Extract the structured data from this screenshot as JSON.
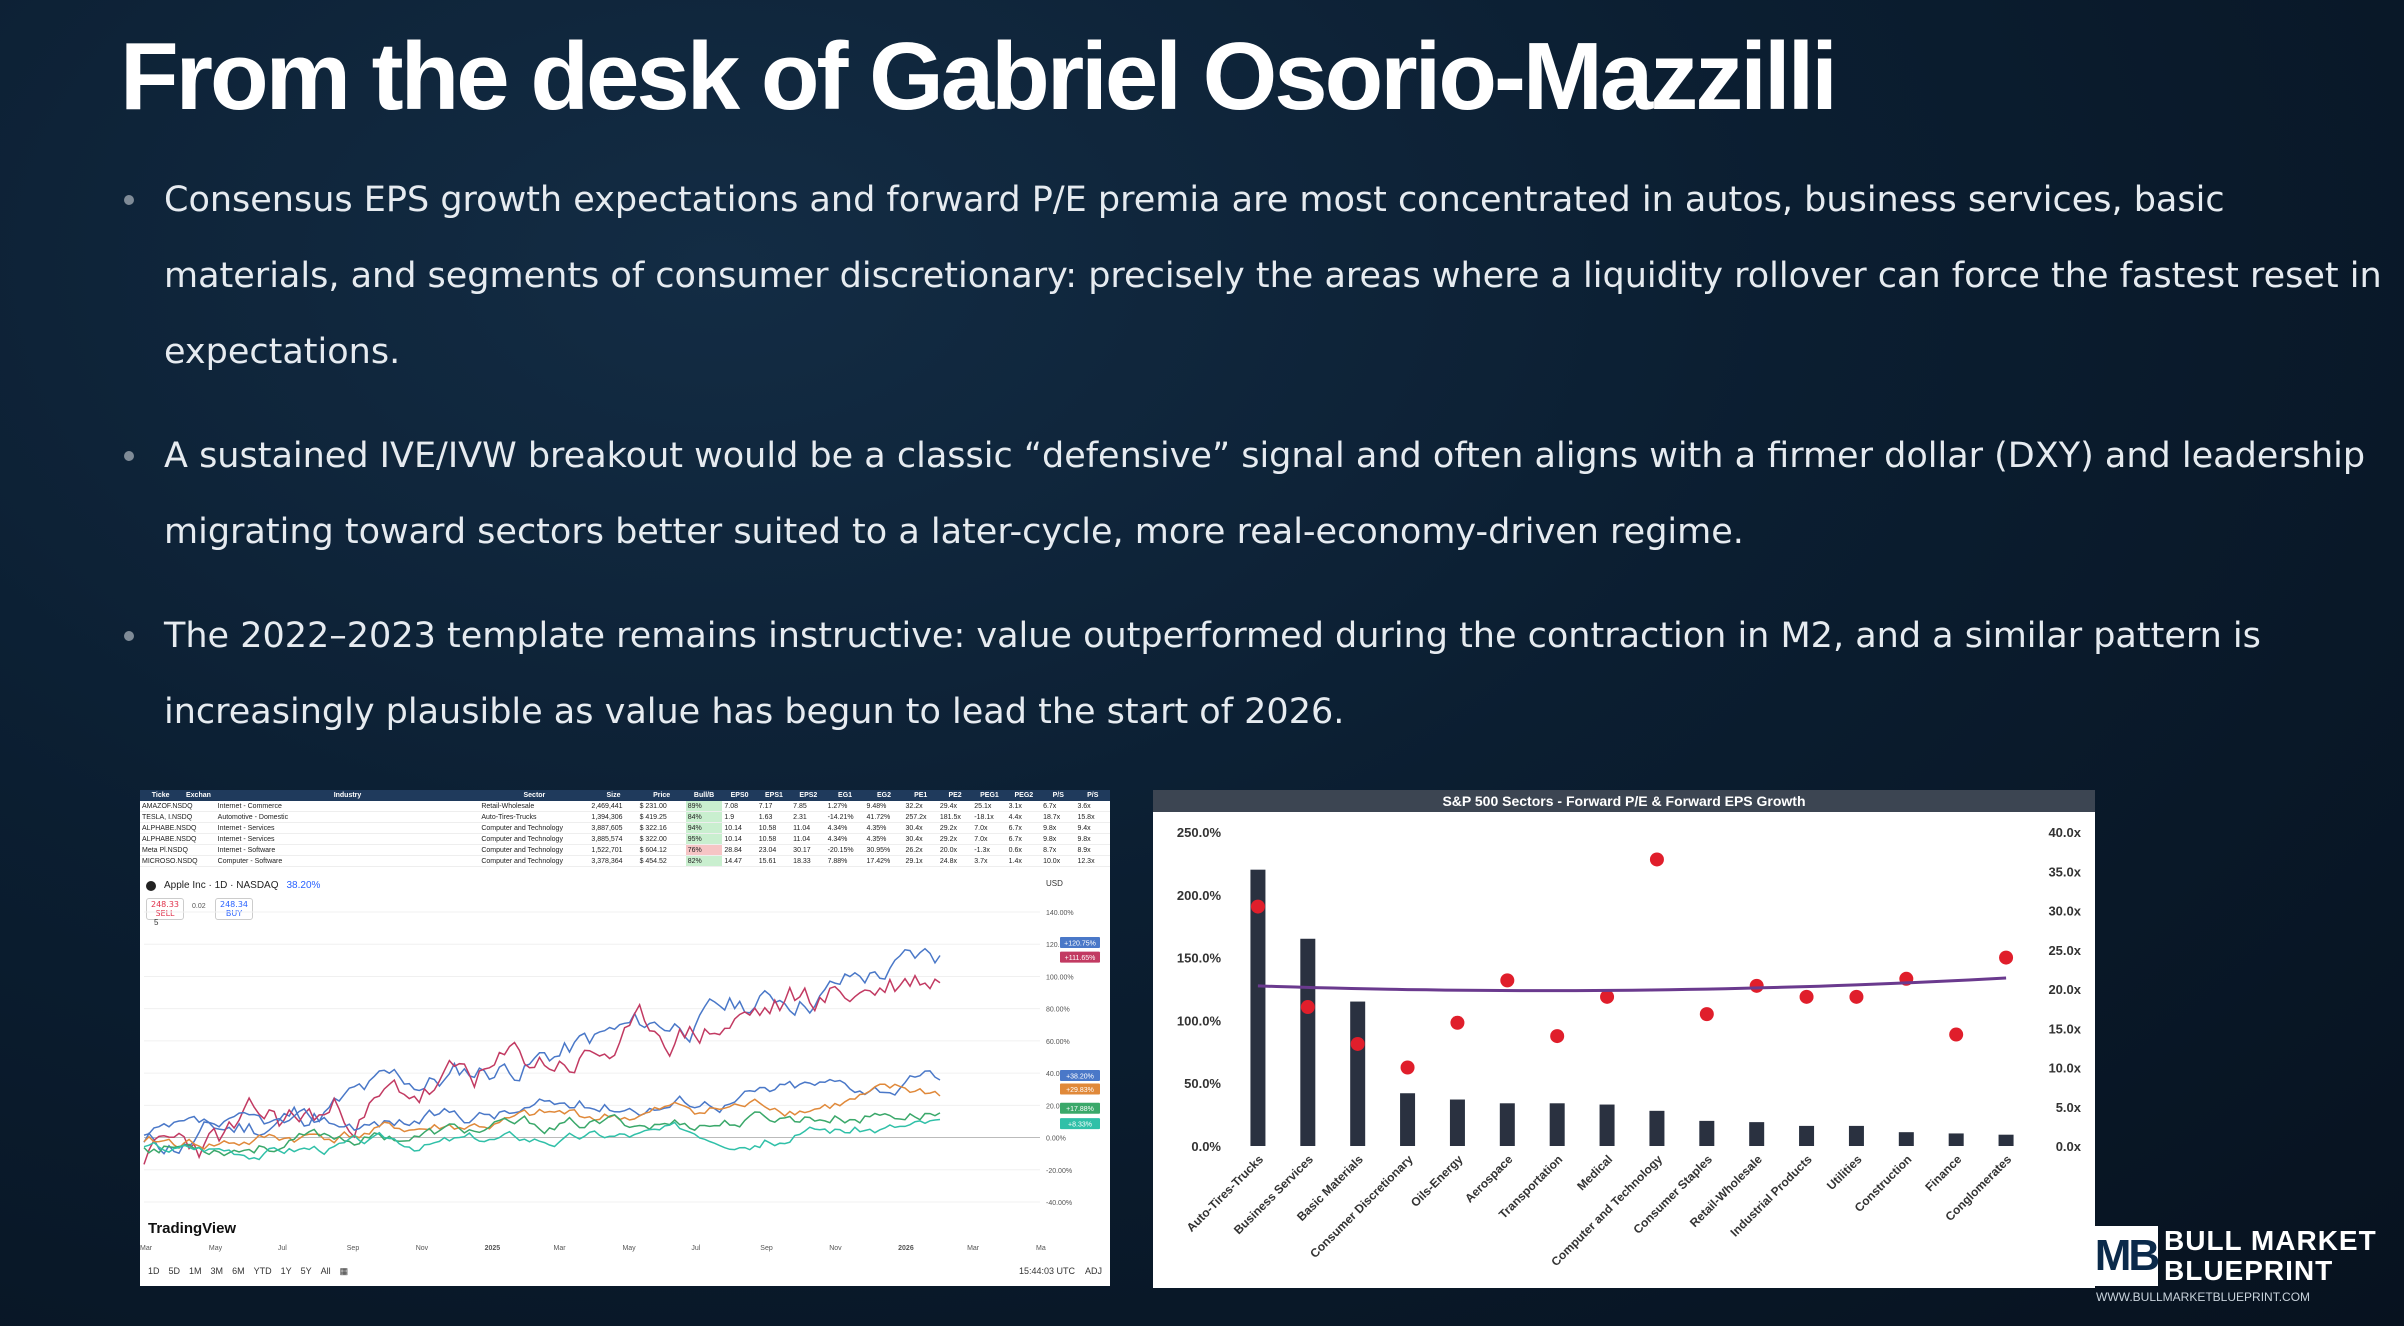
{
  "title": "From the desk of Gabriel Osorio-Mazzilli",
  "bullets": [
    "Consensus EPS growth expectations and forward P/E premia are most concentrated in autos, business services, basic materials, and segments of consumer discretionary: precisely the areas where a liquidity rollover can force the fastest reset in expectations.",
    "A sustained IVE/IVW breakout would be a classic “defensive” signal and often aligns with a firmer dollar (DXY) and leadership migrating toward sectors better suited to a later-cycle, more real-economy-driven regime.",
    "The 2022–2023 template remains instructive: value outperformed during the contraction in M2, and a similar pattern is increasingly plausible as value has begun to lead the start of 2026."
  ],
  "screener": {
    "headers": [
      "Ticke",
      "Exchan",
      "Industry",
      "Sector",
      "Size",
      "Price",
      "Bull/B",
      "EPS0",
      "EPS1",
      "EPS2",
      "EG1",
      "EG2",
      "PE1",
      "PE2",
      "PEG1",
      "PEG2",
      "P/S",
      "P/S"
    ],
    "rows": [
      [
        "AMAZOF.NSDQ",
        "Internet - Commerce",
        "Retail-Wholesale",
        "2,469,441",
        "$ 231.00",
        "89%",
        "7.08",
        "7.17",
        "7.85",
        "1.27%",
        "9.48%",
        "32.2x",
        "29.4x",
        "25.1x",
        "3.1x",
        "6.7x",
        "3.6x"
      ],
      [
        "TESLA, I.NSDQ",
        "Automotive - Domestic",
        "Auto-Tires-Trucks",
        "1,394,306",
        "$ 419.25",
        "84%",
        "1.9",
        "1.63",
        "2.31",
        "-14.21%",
        "41.72%",
        "257.2x",
        "181.5x",
        "-18.1x",
        "4.4x",
        "18.7x",
        "15.8x"
      ],
      [
        "ALPHABE.NSDQ",
        "Internet - Services",
        "Computer and Technology",
        "3,887,605",
        "$ 322.16",
        "94%",
        "10.14",
        "10.58",
        "11.04",
        "4.34%",
        "4.35%",
        "30.4x",
        "29.2x",
        "7.0x",
        "6.7x",
        "9.8x",
        "9.4x"
      ],
      [
        "ALPHABE.NSDQ",
        "Internet - Services",
        "Computer and Technology",
        "3,885,574",
        "$ 322.00",
        "95%",
        "10.14",
        "10.58",
        "11.04",
        "4.34%",
        "4.35%",
        "30.4x",
        "29.2x",
        "7.0x",
        "6.7x",
        "9.8x",
        "9.8x"
      ],
      [
        "Meta Pl.NSDQ",
        "Internet - Software",
        "Computer and Technology",
        "1,522,701",
        "$ 604.12",
        "76%",
        "28.84",
        "23.04",
        "30.17",
        "-20.15%",
        "30.95%",
        "26.2x",
        "20.0x",
        "-1.3x",
        "0.6x",
        "8.7x",
        "8.9x"
      ],
      [
        "MICROSO.NSDQ",
        "Computer - Software",
        "Computer and Technology",
        "3,378,364",
        "$ 454.52",
        "82%",
        "14.47",
        "15.61",
        "18.33",
        "7.88%",
        "17.42%",
        "29.1x",
        "24.8x",
        "3.7x",
        "1.4x",
        "10.0x",
        "12.3x"
      ]
    ]
  },
  "tradingview": {
    "symbol": "Apple Inc · 1D · NASDAQ",
    "change": "38.20%",
    "sell_price": "248.33",
    "sell_label": "SELL",
    "spread": "0.02",
    "buy_price": "248.34",
    "buy_label": "BUY",
    "indicator_count": "5",
    "currency": "USD",
    "logo_text": "TradingView",
    "y_ticks": [
      "140.00%",
      "120.00%",
      "100.00%",
      "80.00%",
      "60.00%",
      "40.00%",
      "20.00%",
      "0.00%",
      "-20.00%",
      "-40.00%"
    ],
    "x_ticks": [
      "Mar",
      "May",
      "Jul",
      "Sep",
      "Nov",
      "2025",
      "Mar",
      "May",
      "Jul",
      "Sep",
      "Nov",
      "2026",
      "Mar",
      "Ma"
    ],
    "badges": [
      {
        "text": "+120.75%",
        "color": "#4a78c8"
      },
      {
        "text": "+111.65%",
        "color": "#c23a62"
      },
      {
        "text": "+38.20%",
        "color": "#4a78c8"
      },
      {
        "text": "+29.83%",
        "color": "#e0893a"
      },
      {
        "text": "+17.88%",
        "color": "#3aa86a"
      },
      {
        "text": "+8.33%",
        "color": "#30c0a8"
      }
    ],
    "ranges": [
      "1D",
      "5D",
      "1M",
      "3M",
      "6M",
      "YTD",
      "1Y",
      "5Y",
      "All"
    ],
    "time": "15:44:03 UTC",
    "adj": "ADJ"
  },
  "chart_data": {
    "type": "bar",
    "title": "S&P 500 Sectors - Forward P/E & Forward EPS Growth",
    "categories": [
      "Auto-Tires-Trucks",
      "Business Services",
      "Basic Materials",
      "Consumer Discretionary",
      "Oils-Energy",
      "Aerospace",
      "Transportation",
      "Medical",
      "Computer and Technology",
      "Consumer Staples",
      "Retail-Wholesale",
      "Industrial Products",
      "Utilities",
      "Construction",
      "Finance",
      "Conglomerates"
    ],
    "series": [
      {
        "values": [
          220,
          165,
          115,
          42,
          37,
          34,
          34,
          33,
          28,
          20,
          19,
          16,
          16,
          11,
          10,
          9
        ],
        "color": "#2a3140",
        "axis": "left"
      },
      {
        "values": [
          30.5,
          17.7,
          13.0,
          10.0,
          15.7,
          21.1,
          14.0,
          19.0,
          36.5,
          16.8,
          20.4,
          19.0,
          19.0,
          21.3,
          14.2,
          24.0
        ],
        "color": "#e01e2b",
        "axis": "right"
      }
    ],
    "trend_color": "#6a3a8e",
    "ylim_left": [
      0,
      250
    ],
    "ylim_right": [
      0,
      40
    ],
    "yticks_left": [
      "0.0%",
      "50.0%",
      "100.0%",
      "150.0%",
      "200.0%",
      "250.0%"
    ],
    "yticks_right": [
      "0.0x",
      "5.0x",
      "10.0x",
      "15.0x",
      "20.0x",
      "25.0x",
      "30.0x",
      "35.0x",
      "40.0x"
    ]
  },
  "brand": {
    "mark": "MB",
    "line1": "BULL MARKET",
    "line2": "BLUEPRINT",
    "url": "WWW.BULLMARKETBLUEPRINT.COM"
  }
}
